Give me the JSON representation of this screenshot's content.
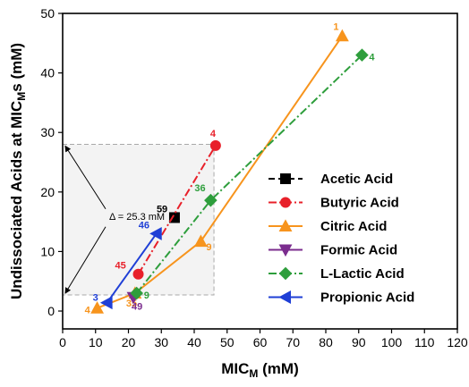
{
  "chart_data": {
    "type": "line",
    "xlabel": "MIC",
    "xlabel_sub": "M",
    "xlabel_suffix": " (mM)",
    "ylabel": "Undissociated Acids at MIC",
    "ylabel_sub": "M",
    "ylabel_suffix": "s (mM)",
    "xlim": [
      0,
      120
    ],
    "ylim": [
      -3,
      50
    ],
    "x_ticks": [
      0,
      10,
      20,
      30,
      40,
      50,
      60,
      70,
      80,
      90,
      100,
      110,
      120
    ],
    "y_ticks": [
      0,
      10,
      20,
      30,
      40,
      50
    ],
    "legend_position": "middle-right",
    "annotation": {
      "text": "Δ = 25.3 mM",
      "box_x": [
        0,
        46
      ],
      "box_y": [
        2.7,
        28
      ]
    },
    "series": [
      {
        "name": "Acetic Acid",
        "color": "#000000",
        "marker": "square",
        "dash": "dash",
        "points": [
          {
            "x": 34,
            "y": 15.7,
            "label": "59"
          }
        ]
      },
      {
        "name": "Butyric Acid",
        "color": "#e8202a",
        "marker": "circle",
        "dash": "dashdot",
        "points": [
          {
            "x": 23,
            "y": 6.2,
            "label": "45"
          },
          {
            "x": 46.5,
            "y": 27.8,
            "label": "4"
          }
        ]
      },
      {
        "name": "Citric Acid",
        "color": "#f7941d",
        "marker": "triangle-up",
        "dash": "solid",
        "points": [
          {
            "x": 10.5,
            "y": 0.5,
            "label": "4"
          },
          {
            "x": 22,
            "y": 3.0,
            "label": "35"
          },
          {
            "x": 42,
            "y": 11.7,
            "label": "9"
          },
          {
            "x": 85,
            "y": 46.2,
            "label": "1"
          }
        ]
      },
      {
        "name": "Formic Acid",
        "color": "#7b2d8e",
        "marker": "triangle-down",
        "dash": "solid",
        "points": [
          {
            "x": 21.5,
            "y": 2.3,
            "label": "49"
          }
        ]
      },
      {
        "name": "L-Lactic Acid",
        "color": "#2e9e3c",
        "marker": "diamond",
        "dash": "dashdot",
        "points": [
          {
            "x": 22.5,
            "y": 3.0,
            "label": "9"
          },
          {
            "x": 45,
            "y": 18.6,
            "label": "36"
          },
          {
            "x": 91,
            "y": 43,
            "label": "4"
          }
        ]
      },
      {
        "name": "Propionic Acid",
        "color": "#1f3fd6",
        "marker": "triangle-left",
        "dash": "solid",
        "points": [
          {
            "x": 13.5,
            "y": 1.4,
            "label": "3"
          },
          {
            "x": 28.5,
            "y": 13.0,
            "label": "46"
          }
        ]
      }
    ]
  }
}
